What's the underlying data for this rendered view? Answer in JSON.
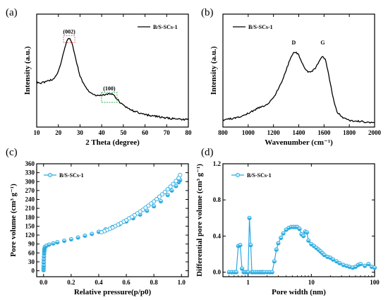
{
  "chart_data": [
    {
      "type": "line",
      "panel_label": "(a)",
      "xlabel": "2 Theta (degree)",
      "ylabel": "Intensity (a.u.)",
      "xlim": [
        10,
        80
      ],
      "ylim": [
        0,
        1
      ],
      "xticks": [
        10,
        20,
        30,
        40,
        50,
        60,
        70,
        80
      ],
      "legend": "top-right",
      "series": [
        {
          "name": "B/S-SCs-1",
          "color": "#000000",
          "x": [
            10,
            12,
            14,
            16,
            18,
            20,
            21,
            22,
            23,
            24,
            25,
            26,
            27,
            28,
            29,
            30,
            32,
            34,
            36,
            38,
            40,
            42,
            43,
            44,
            45,
            46,
            48,
            50,
            55,
            60,
            65,
            70,
            75,
            80
          ],
          "y": [
            0.4,
            0.39,
            0.4,
            0.41,
            0.43,
            0.49,
            0.55,
            0.63,
            0.71,
            0.77,
            0.79,
            0.76,
            0.69,
            0.61,
            0.53,
            0.45,
            0.37,
            0.32,
            0.29,
            0.28,
            0.28,
            0.285,
            0.29,
            0.295,
            0.29,
            0.27,
            0.23,
            0.19,
            0.14,
            0.11,
            0.095,
            0.08,
            0.07,
            0.065
          ]
        }
      ],
      "annotations": [
        {
          "text": "(002)",
          "x": 25,
          "y": 0.79,
          "color": "#e0585a"
        },
        {
          "text": "(100)",
          "x": 43.5,
          "y": 0.3,
          "color": "#2ab04a"
        }
      ]
    },
    {
      "type": "line",
      "panel_label": "(b)",
      "xlabel": "Wavenumber (cm⁻¹)",
      "ylabel": "Intensity (a.u.)",
      "xlim": [
        800,
        2000
      ],
      "ylim": [
        0,
        1
      ],
      "xticks": [
        800,
        1000,
        1200,
        1400,
        1600,
        1800,
        2000
      ],
      "legend": "top-left",
      "series": [
        {
          "name": "B/S-SCs-1",
          "color": "#000000",
          "x": [
            800,
            900,
            1000,
            1050,
            1100,
            1150,
            1200,
            1250,
            1300,
            1330,
            1360,
            1380,
            1400,
            1430,
            1460,
            1480,
            1500,
            1530,
            1560,
            1590,
            1610,
            1630,
            1650,
            1680,
            1700,
            1750,
            1800,
            1850,
            1900,
            1950,
            2000
          ],
          "y": [
            0.06,
            0.08,
            0.12,
            0.15,
            0.18,
            0.2,
            0.26,
            0.36,
            0.5,
            0.6,
            0.66,
            0.66,
            0.64,
            0.56,
            0.5,
            0.49,
            0.49,
            0.52,
            0.58,
            0.63,
            0.6,
            0.5,
            0.38,
            0.22,
            0.14,
            0.08,
            0.06,
            0.05,
            0.05,
            0.04,
            0.04
          ]
        }
      ],
      "annotations": [
        {
          "text": "D",
          "x": 1360,
          "y": 0.72
        },
        {
          "text": "G",
          "x": 1590,
          "y": 0.72
        }
      ]
    },
    {
      "type": "scatter",
      "panel_label": "(c)",
      "xlabel": "Relative pressure(p/p0)",
      "ylabel": "Pore volume (cm³ g⁻¹)",
      "xlim": [
        -0.05,
        1.05
      ],
      "ylim": [
        -20,
        360
      ],
      "xticks": [
        0.0,
        0.2,
        0.4,
        0.6,
        0.8,
        1.0
      ],
      "yticks": [
        0,
        30,
        60,
        90,
        120,
        150,
        180,
        210,
        240,
        270,
        300,
        330,
        360
      ],
      "legend": "top-left",
      "series": [
        {
          "name": "B/S-SCs-1",
          "color": "#29abe2",
          "marker": "half-filled-circle",
          "x": [
            0.0,
            0.0,
            0.001,
            0.001,
            0.002,
            0.003,
            0.004,
            0.005,
            0.006,
            0.008,
            0.01,
            0.02,
            0.04,
            0.07,
            0.1,
            0.15,
            0.2,
            0.25,
            0.3,
            0.35,
            0.4,
            0.45,
            0.5,
            0.55,
            0.6,
            0.65,
            0.7,
            0.75,
            0.8,
            0.85,
            0.9,
            0.93,
            0.96,
            0.98,
            0.99
          ],
          "y": [
            2,
            10,
            18,
            28,
            38,
            48,
            58,
            66,
            72,
            76,
            80,
            84,
            88,
            92,
            96,
            101,
            106,
            112,
            118,
            124,
            131,
            139,
            147,
            156,
            166,
            177,
            189,
            202,
            217,
            234,
            255,
            270,
            285,
            298,
            305
          ]
        },
        {
          "name": "",
          "color": "#29abe2",
          "marker": "open-circle",
          "x": [
            0.99,
            0.98,
            0.96,
            0.94,
            0.92,
            0.9,
            0.88,
            0.86,
            0.84,
            0.82,
            0.8,
            0.78,
            0.76,
            0.74,
            0.72,
            0.7,
            0.68,
            0.66,
            0.64,
            0.62,
            0.6,
            0.58,
            0.56,
            0.54,
            0.52,
            0.5,
            0.48,
            0.46,
            0.44,
            0.42
          ],
          "y": [
            322,
            312,
            302,
            292,
            283,
            274,
            265,
            257,
            249,
            241,
            233,
            226,
            219,
            212,
            205,
            199,
            193,
            187,
            181,
            176,
            170,
            165,
            160,
            155,
            150,
            145,
            141,
            137,
            133,
            130
          ]
        }
      ]
    },
    {
      "type": "line",
      "panel_label": "(d)",
      "xlabel": "Pore width (nm)",
      "ylabel": "Differential pore volume (cm³ g⁻¹)",
      "xscale": "log",
      "xlim": [
        0.4,
        100
      ],
      "ylim": [
        -0.05,
        1.2
      ],
      "xticks": [
        1,
        10,
        100
      ],
      "yticks": [
        0.0,
        0.4,
        0.8,
        1.2
      ],
      "legend": "top-left",
      "series": [
        {
          "name": "B/S-SCs-1",
          "color": "#29abe2",
          "marker": "half-filled-circle",
          "x": [
            0.5,
            0.55,
            0.6,
            0.65,
            0.7,
            0.75,
            0.8,
            0.85,
            0.9,
            0.95,
            1.0,
            1.05,
            1.1,
            1.15,
            1.2,
            1.3,
            1.4,
            1.5,
            1.6,
            1.7,
            1.8,
            2.0,
            2.2,
            2.4,
            2.6,
            2.8,
            3.0,
            3.3,
            3.6,
            4.0,
            4.4,
            4.8,
            5.2,
            5.6,
            6.0,
            6.5,
            7.0,
            7.5,
            8.0,
            8.5,
            9.0,
            10,
            11,
            12,
            13,
            14,
            15,
            16,
            18,
            20,
            22,
            25,
            28,
            32,
            36,
            40,
            45,
            50,
            55,
            60,
            70,
            80,
            90,
            100
          ],
          "y": [
            0,
            0,
            0,
            0,
            0.29,
            0.3,
            0.04,
            0,
            0,
            0,
            0,
            0.6,
            0.3,
            0,
            0,
            0,
            0,
            0,
            0,
            0,
            0,
            0,
            0,
            0,
            0.12,
            0.25,
            0.32,
            0.38,
            0.43,
            0.47,
            0.49,
            0.5,
            0.5,
            0.5,
            0.5,
            0.48,
            0.42,
            0.4,
            0.45,
            0.44,
            0.35,
            0.31,
            0.29,
            0.27,
            0.25,
            0.23,
            0.21,
            0.19,
            0.17,
            0.16,
            0.14,
            0.12,
            0.1,
            0.08,
            0.07,
            0.06,
            0.05,
            0.06,
            0.08,
            0.09,
            0.07,
            0.09,
            0.06,
            0.05
          ]
        }
      ]
    }
  ]
}
